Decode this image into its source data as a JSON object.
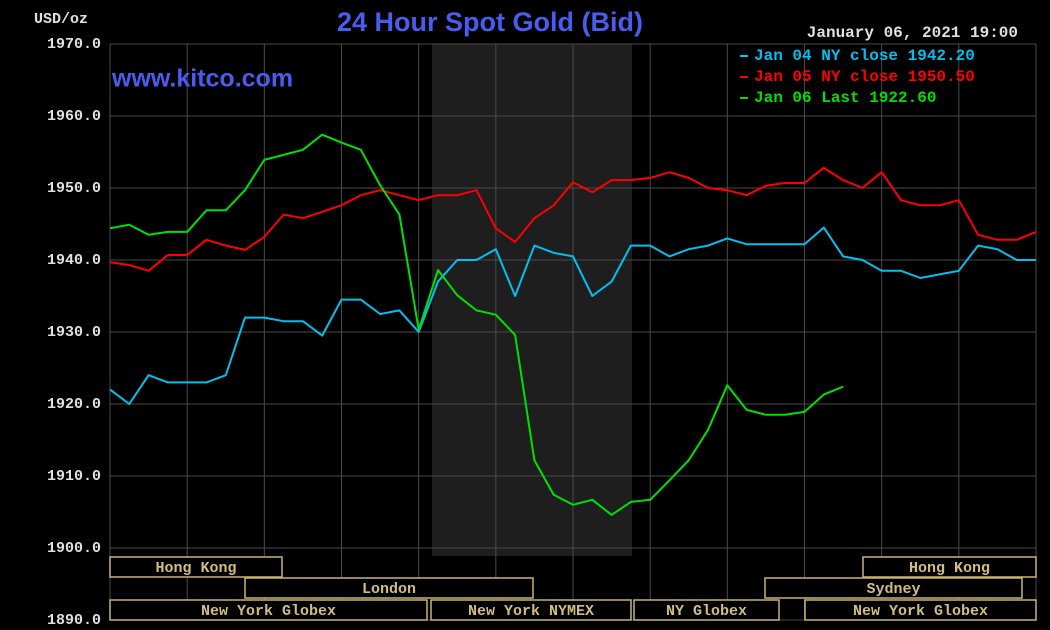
{
  "chart_data": {
    "type": "line",
    "title": "24 Hour Spot Gold (Bid)",
    "ylabel": "USD/oz",
    "timestamp": "January 06, 2021 19:00",
    "watermark": "www.kitco.com",
    "ylim": [
      1890,
      1970
    ],
    "yticks": [
      {
        "value": 1890,
        "label": "1890.0"
      },
      {
        "value": 1900,
        "label": "1900.0"
      },
      {
        "value": 1910,
        "label": "1910.0"
      },
      {
        "value": 1920,
        "label": "1920.0"
      },
      {
        "value": 1930,
        "label": "1930.0"
      },
      {
        "value": 1940,
        "label": "1940.0"
      },
      {
        "value": 1950,
        "label": "1950.0"
      },
      {
        "value": 1960,
        "label": "1960.0"
      },
      {
        "value": 1970,
        "label": "1970.0"
      }
    ],
    "grid": true,
    "legend": "upper right",
    "series": [
      {
        "name": "Jan 04 NY close 1942.20",
        "color": "#00c0f0",
        "values": [
          1922,
          1920,
          1924,
          1923,
          1923,
          1923,
          1924,
          1932,
          1932,
          1931.5,
          1931.5,
          1929.5,
          1934.5,
          1934.5,
          1932.5,
          1933,
          1930,
          1937,
          1940,
          1940,
          1941.5,
          1935,
          1942,
          1941,
          1940.5,
          1935,
          1937,
          1942,
          1942,
          1940.5,
          1941.5,
          1942,
          1943,
          1942.2,
          1942.2,
          1942.2,
          1942.2,
          1944.5,
          1940.5,
          1940,
          1938.5,
          1938.5,
          1937.5,
          1938,
          1938.5,
          1942,
          1941.5,
          1940,
          1940
        ]
      },
      {
        "name": "Jan 05 NY close 1950.50",
        "color": "#ff0000",
        "values": [
          1939.7,
          1939.3,
          1938.5,
          1940.7,
          1940.7,
          1942.8,
          1942,
          1941.4,
          1943.2,
          1946.3,
          1945.8,
          1946.7,
          1947.6,
          1949,
          1949.7,
          1949,
          1948.3,
          1949,
          1949,
          1949.7,
          1944.4,
          1942.5,
          1945.8,
          1947.6,
          1950.8,
          1949.4,
          1951.1,
          1951.1,
          1951.4,
          1952.2,
          1951.4,
          1950,
          1949.7,
          1949,
          1950.3,
          1950.7,
          1950.7,
          1952.8,
          1951.1,
          1950,
          1952.2,
          1948.3,
          1947.6,
          1947.6,
          1948.3,
          1943.5,
          1942.8,
          1942.8,
          1943.9
        ]
      },
      {
        "name": "Jan 06 Last 1922.60",
        "color": "#00e000",
        "values": [
          1944.4,
          1944.9,
          1943.5,
          1943.9,
          1943.9,
          1946.9,
          1946.9,
          1949.7,
          1953.9,
          1954.6,
          1955.3,
          1957.4,
          1956.3,
          1955.3,
          1950.4,
          1946.3,
          1930.3,
          1938.6,
          1935.1,
          1933,
          1932.4,
          1929.6,
          1912.2,
          1907.4,
          1906,
          1906.7,
          1904.6,
          1906.4,
          1906.7,
          1909.4,
          1912.2,
          1916.4,
          1922.6,
          1919.2,
          1918.5,
          1918.5,
          1918.9,
          1921.3,
          1922.4,
          null,
          null,
          null,
          null,
          null,
          null,
          null,
          null,
          null,
          null
        ]
      }
    ],
    "sessions": [
      "Hong Kong",
      "Hong Kong",
      "London",
      "Sydney",
      "New York Globex",
      "New York NYMEX",
      "NY Globex",
      "New York Globex"
    ]
  }
}
